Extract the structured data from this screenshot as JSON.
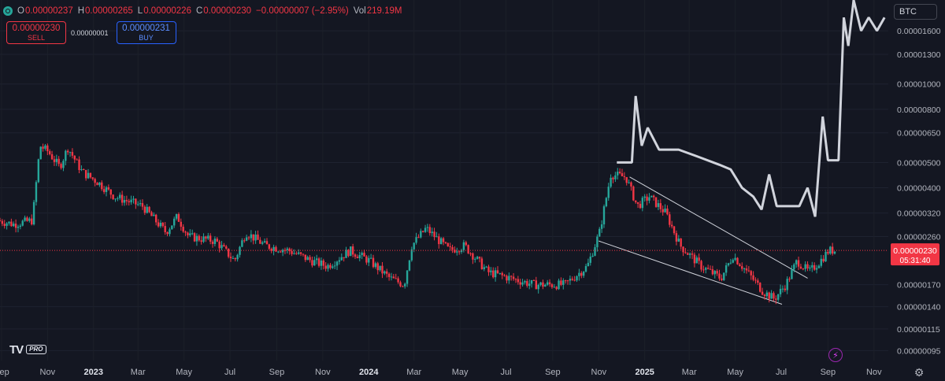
{
  "ohlc": {
    "open_key": "O",
    "open": "0.00000237",
    "high_key": "H",
    "high": "0.00000265",
    "low_key": "L",
    "low": "0.00000226",
    "close_key": "C",
    "close": "0.00000230",
    "change": "−0.00000007 (−2.95%)",
    "vol_key": "Vol",
    "vol": "219.19M",
    "status_color": "#26a69a"
  },
  "trade": {
    "sell_price": "0.00000230",
    "sell_label": "SELL",
    "spread": "0.00000001",
    "buy_price": "0.00000231",
    "buy_label": "BUY"
  },
  "currency": "BTC",
  "logo": {
    "mark": "TV",
    "badge": "PRO"
  },
  "icons": {
    "bolt": "lightning-icon",
    "settings": "gear-icon",
    "status": "status-dot-icon"
  },
  "chart_data": {
    "type": "candlestick",
    "scale": "log",
    "colors": {
      "up": "#26a69a",
      "down": "#f23645",
      "overlay_line": "#d1d4dc",
      "trendline": "#d1d4dc",
      "price_line": "#f23645",
      "background": "#141722"
    },
    "y_ticks": [
      "0.00001600",
      "0.00001300",
      "0.00001000",
      "0.00000800",
      "0.00000650",
      "0.00000500",
      "0.00000400",
      "0.00000320",
      "0.00000260",
      "0.00000170",
      "0.00000140",
      "0.00000115",
      "0.00000095"
    ],
    "y_tick_values": [
      1.6e-05,
      1.3e-05,
      1e-05,
      8e-06,
      6.5e-06,
      5e-06,
      4e-06,
      3.2e-06,
      2.6e-06,
      1.7e-06,
      1.4e-06,
      1.15e-06,
      9.5e-07
    ],
    "x_ticks": [
      "Sep",
      "Nov",
      "2023",
      "Mar",
      "May",
      "Jul",
      "Sep",
      "Nov",
      "2024",
      "Mar",
      "May",
      "Jul",
      "Sep",
      "Nov",
      "2025",
      "Mar",
      "May",
      "Jul",
      "Sep",
      "Nov"
    ],
    "x_tick_dates": [
      "2022-09-01",
      "2022-11-01",
      "2023-01-01",
      "2023-03-01",
      "2023-05-01",
      "2023-07-01",
      "2023-09-01",
      "2023-11-01",
      "2024-01-01",
      "2024-03-01",
      "2024-05-01",
      "2024-07-01",
      "2024-09-01",
      "2024-11-01",
      "2025-01-01",
      "2025-03-01",
      "2025-05-01",
      "2025-07-01",
      "2025-09-01",
      "2025-11-01"
    ],
    "bold_x_ticks": [
      "2023",
      "2024",
      "2025"
    ],
    "x_range": [
      "2022-08-30",
      "2025-11-20"
    ],
    "y_range": [
      8.7e-07,
      2.1e-05
    ],
    "last_price": {
      "value": 2.3e-06,
      "label": "0.00000230",
      "countdown": "05:31:40"
    },
    "price_series": {
      "name": "",
      "points": [
        [
          "2022-08-30",
          3e-06
        ],
        [
          "2022-09-20",
          2.9e-06
        ],
        [
          "2022-10-15",
          3e-06
        ],
        [
          "2022-10-25",
          5.8e-06
        ],
        [
          "2022-11-05",
          5.5e-06
        ],
        [
          "2022-11-20",
          4.8e-06
        ],
        [
          "2022-12-01",
          5.7e-06
        ],
        [
          "2022-12-20",
          4.6e-06
        ],
        [
          "2023-01-10",
          4.2e-06
        ],
        [
          "2023-02-01",
          3.7e-06
        ],
        [
          "2023-03-10",
          3.4e-06
        ],
        [
          "2023-04-10",
          2.7e-06
        ],
        [
          "2023-04-25",
          3.1e-06
        ],
        [
          "2023-05-10",
          2.6e-06
        ],
        [
          "2023-06-15",
          2.5e-06
        ],
        [
          "2023-07-10",
          2.1e-06
        ],
        [
          "2023-07-25",
          2.7e-06
        ],
        [
          "2023-08-20",
          2.4e-06
        ],
        [
          "2023-09-20",
          2.3e-06
        ],
        [
          "2023-10-20",
          2.1e-06
        ],
        [
          "2023-11-10",
          2e-06
        ],
        [
          "2023-12-10",
          2.3e-06
        ],
        [
          "2024-01-05",
          2.1e-06
        ],
        [
          "2024-02-01",
          1.8e-06
        ],
        [
          "2024-02-20",
          1.7e-06
        ],
        [
          "2024-03-01",
          2.4e-06
        ],
        [
          "2024-03-20",
          2.8e-06
        ],
        [
          "2024-04-20",
          2.3e-06
        ],
        [
          "2024-05-10",
          2.4e-06
        ],
        [
          "2024-06-10",
          1.9e-06
        ],
        [
          "2024-07-10",
          1.8e-06
        ],
        [
          "2024-08-10",
          1.7e-06
        ],
        [
          "2024-09-20",
          1.7e-06
        ],
        [
          "2024-10-20",
          2e-06
        ],
        [
          "2024-11-05",
          2.7e-06
        ],
        [
          "2024-11-20",
          4.5e-06
        ],
        [
          "2024-12-10",
          4.4e-06
        ],
        [
          "2024-12-25",
          3.4e-06
        ],
        [
          "2025-01-10",
          3.7e-06
        ],
        [
          "2025-02-01",
          3.2e-06
        ],
        [
          "2025-02-20",
          2.4e-06
        ],
        [
          "2025-03-20",
          2e-06
        ],
        [
          "2025-04-15",
          1.8e-06
        ],
        [
          "2025-05-01",
          2.2e-06
        ],
        [
          "2025-05-20",
          1.9e-06
        ],
        [
          "2025-06-10",
          1.6e-06
        ],
        [
          "2025-06-25",
          1.5e-06
        ],
        [
          "2025-07-10",
          1.7e-06
        ],
        [
          "2025-07-25",
          2.1e-06
        ],
        [
          "2025-08-10",
          1.9e-06
        ],
        [
          "2025-08-25",
          2.1e-06
        ],
        [
          "2025-09-05",
          2.3e-06
        ],
        [
          "2025-09-12",
          2.3e-06
        ]
      ]
    },
    "overlay_series": {
      "name": "",
      "points": [
        [
          "2024-11-25",
          5e-06
        ],
        [
          "2024-12-15",
          5e-06
        ],
        [
          "2024-12-20",
          9e-06
        ],
        [
          "2024-12-28",
          5.8e-06
        ],
        [
          "2025-01-05",
          6.8e-06
        ],
        [
          "2025-01-20",
          5.6e-06
        ],
        [
          "2025-02-15",
          5.6e-06
        ],
        [
          "2025-03-10",
          5.3e-06
        ],
        [
          "2025-04-10",
          4.9e-06
        ],
        [
          "2025-04-25",
          4.7e-06
        ],
        [
          "2025-05-10",
          4e-06
        ],
        [
          "2025-05-25",
          3.7e-06
        ],
        [
          "2025-06-05",
          3.3e-06
        ],
        [
          "2025-06-15",
          4.5e-06
        ],
        [
          "2025-06-25",
          3.4e-06
        ],
        [
          "2025-07-10",
          3.4e-06
        ],
        [
          "2025-07-25",
          3.4e-06
        ],
        [
          "2025-08-05",
          4e-06
        ],
        [
          "2025-08-15",
          3.1e-06
        ],
        [
          "2025-08-25",
          7.5e-06
        ],
        [
          "2025-09-01",
          5.1e-06
        ],
        [
          "2025-09-15",
          5.1e-06
        ],
        [
          "2025-09-22",
          1.8e-05
        ],
        [
          "2025-09-28",
          1.4e-05
        ],
        [
          "2025-10-05",
          2.1e-05
        ],
        [
          "2025-10-15",
          1.6e-05
        ],
        [
          "2025-10-25",
          1.8e-05
        ],
        [
          "2025-11-05",
          1.6e-05
        ],
        [
          "2025-11-15",
          1.8e-05
        ]
      ]
    },
    "trendlines": [
      {
        "from": [
          "2024-11-01",
          2.5e-06
        ],
        "to": [
          "2025-07-02",
          1.43e-06
        ]
      },
      {
        "from": [
          "2024-12-12",
          4.4e-06
        ],
        "to": [
          "2025-08-05",
          1.8e-06
        ]
      }
    ]
  }
}
